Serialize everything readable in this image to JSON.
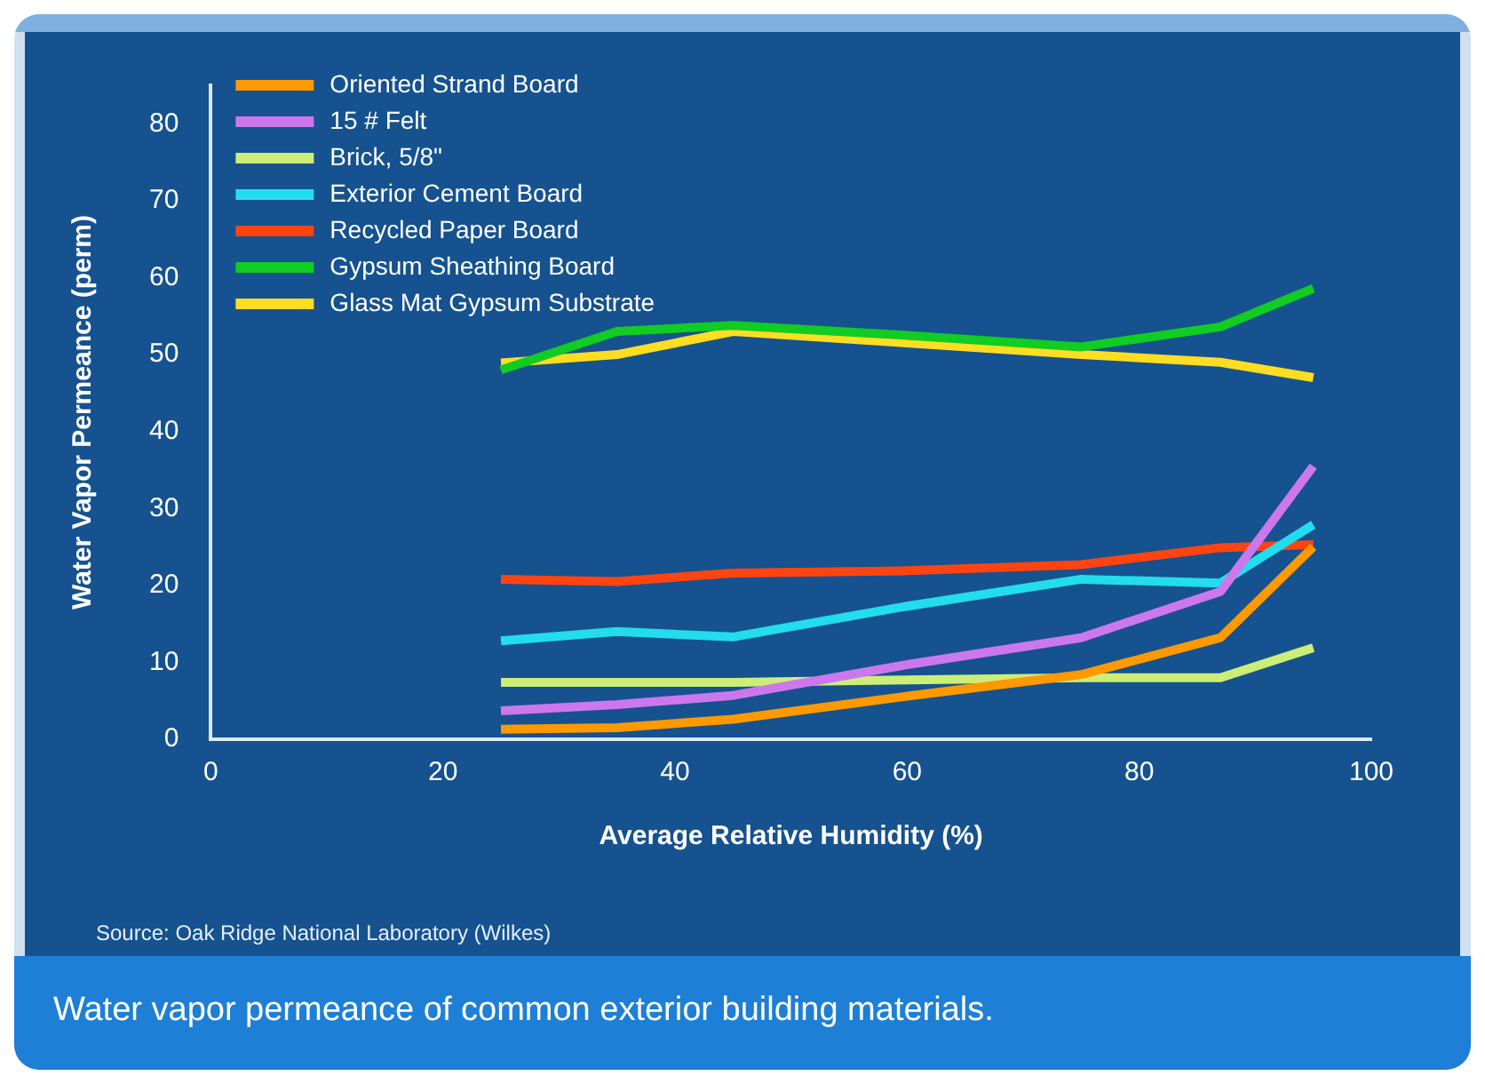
{
  "chart_data": {
    "type": "line",
    "xlabel": "Average Relative Humidity (%)",
    "ylabel": "Water Vapor Permeance (perm)",
    "x": [
      25,
      35,
      45,
      60,
      75,
      87,
      95
    ],
    "xlim": [
      0,
      100
    ],
    "xticks": [
      0,
      20,
      40,
      60,
      80,
      100
    ],
    "ylim": [
      0,
      85
    ],
    "yticks": [
      0,
      10,
      20,
      30,
      40,
      50,
      60,
      70,
      80
    ],
    "grid": false,
    "legend": "top left",
    "marker": "none",
    "line_style": "solid",
    "series": [
      {
        "name": "Oriented Strand Board",
        "color": "#ff9900",
        "values": [
          1.3,
          1.5,
          2.6,
          5.6,
          8.4,
          13.2,
          25
        ]
      },
      {
        "name": "15 # Felt",
        "color": "#cc77ee",
        "values": [
          3.7,
          4.5,
          5.7,
          9.7,
          13.2,
          19.2,
          35.5
        ]
      },
      {
        "name": "Brick, 5/8\"",
        "color": "#ccee77",
        "values": [
          7.4,
          7.4,
          7.4,
          7.7,
          8,
          8,
          11.9
        ]
      },
      {
        "name": "Exterior Cement Board",
        "color": "#22ddee",
        "values": [
          12.8,
          14,
          13.3,
          17.3,
          20.8,
          20.3,
          27.9
        ]
      },
      {
        "name": "Recycled Paper Board",
        "color": "#ff4411",
        "values": [
          20.8,
          20.5,
          21.6,
          21.9,
          22.7,
          24.9,
          25.3
        ]
      },
      {
        "name": "Gypsum Sheathing Board",
        "color": "#11cc22",
        "values": [
          48,
          53,
          53.8,
          52.5,
          51,
          53.6,
          58.6
        ]
      },
      {
        "name": "Glass Mat Gypsum Substrate",
        "color": "#ffdd22",
        "values": [
          48.9,
          50,
          53,
          51.5,
          50,
          49,
          47
        ]
      }
    ],
    "annotations": [
      "Source: Oak Ridge National Laboratory (Wilkes)",
      "Water vapor permeance of common exterior building materials."
    ]
  }
}
